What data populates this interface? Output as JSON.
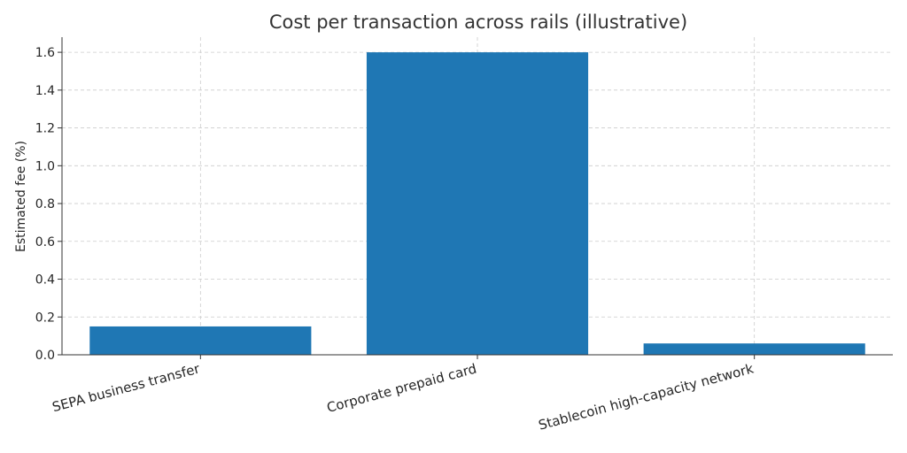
{
  "chart_data": {
    "type": "bar",
    "title": "Cost per transaction across rails (illustrative)",
    "xlabel": "",
    "ylabel": "Estimated fee (%)",
    "categories": [
      "SEPA business transfer",
      "Corporate prepaid card",
      "Stablecoin high-capacity network"
    ],
    "values": [
      0.15,
      1.6,
      0.06
    ],
    "ylim": [
      0,
      1.68
    ],
    "yticks": [
      0.0,
      0.2,
      0.4,
      0.6,
      0.8,
      1.0,
      1.2,
      1.4,
      1.6
    ],
    "ytick_labels": [
      "0.0",
      "0.2",
      "0.4",
      "0.6",
      "0.8",
      "1.0",
      "1.2",
      "1.4",
      "1.6"
    ],
    "grid": true,
    "colors": {
      "bar": "#1f77b4"
    }
  }
}
